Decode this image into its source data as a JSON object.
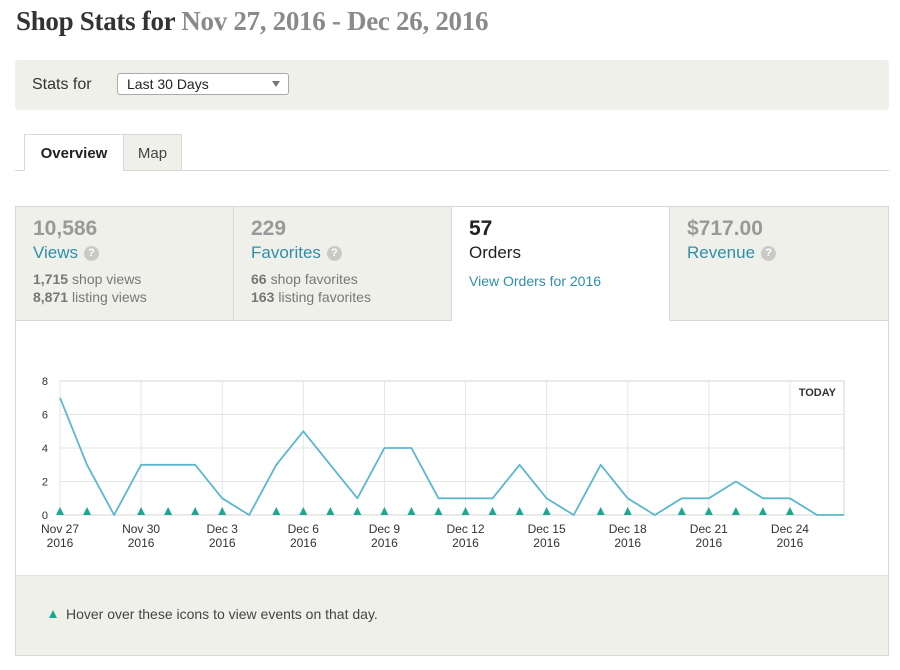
{
  "header": {
    "title_main": "Shop Stats for",
    "title_range": "Nov 27, 2016 - Dec 26, 2016"
  },
  "filter": {
    "label": "Stats for",
    "selected": "Last 30 Days"
  },
  "tabs": [
    {
      "label": "Overview",
      "active": true
    },
    {
      "label": "Map",
      "active": false
    }
  ],
  "stats": {
    "views": {
      "value": "10,586",
      "label": "Views",
      "shop_views_count": "1,715",
      "shop_views_label": "shop views",
      "listing_views_count": "8,871",
      "listing_views_label": "listing views"
    },
    "favorites": {
      "value": "229",
      "label": "Favorites",
      "shop_favorites_count": "66",
      "shop_favorites_label": "shop favorites",
      "listing_favorites_count": "163",
      "listing_favorites_label": "listing favorites"
    },
    "orders": {
      "value": "57",
      "label": "Orders",
      "link": "View Orders for 2016"
    },
    "revenue": {
      "value": "$717.00",
      "label": "Revenue"
    }
  },
  "chart_data": {
    "type": "line",
    "ylim": [
      0,
      8
    ],
    "yticks": [
      0,
      2,
      4,
      6,
      8
    ],
    "x_labels": [
      {
        "index": 0,
        "line1": "Nov 27",
        "line2": "2016"
      },
      {
        "index": 3,
        "line1": "Nov 30",
        "line2": "2016"
      },
      {
        "index": 6,
        "line1": "Dec 3",
        "line2": "2016"
      },
      {
        "index": 9,
        "line1": "Dec 6",
        "line2": "2016"
      },
      {
        "index": 12,
        "line1": "Dec 9",
        "line2": "2016"
      },
      {
        "index": 15,
        "line1": "Dec 12",
        "line2": "2016"
      },
      {
        "index": 18,
        "line1": "Dec 15",
        "line2": "2016"
      },
      {
        "index": 21,
        "line1": "Dec 18",
        "line2": "2016"
      },
      {
        "index": 24,
        "line1": "Dec 21",
        "line2": "2016"
      },
      {
        "index": 27,
        "line1": "Dec 24",
        "line2": "2016"
      }
    ],
    "values": [
      7,
      3,
      0,
      3,
      3,
      3,
      1,
      0,
      3,
      5,
      3,
      1,
      4,
      4,
      1,
      1,
      1,
      3,
      1,
      0,
      3,
      1,
      0,
      1,
      1,
      2,
      1,
      1,
      0,
      0
    ],
    "event_days": [
      0,
      1,
      3,
      4,
      5,
      6,
      8,
      9,
      10,
      11,
      12,
      13,
      14,
      15,
      16,
      17,
      18,
      20,
      21,
      23,
      24,
      25,
      26,
      27
    ],
    "today_label": "TODAY",
    "line_color": "#5bb8cf",
    "event_color": "#1fa68f"
  },
  "footer": {
    "hint": "Hover over these icons to view events on that day."
  }
}
